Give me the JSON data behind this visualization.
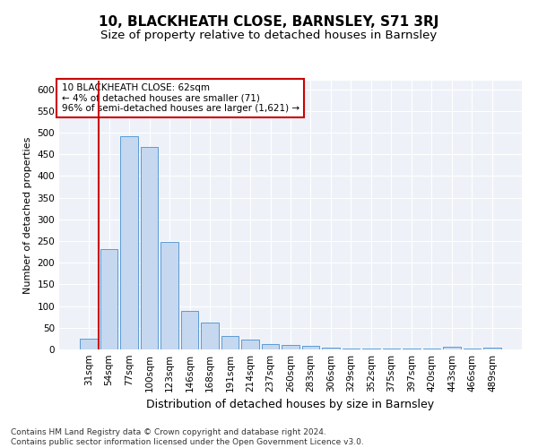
{
  "title1": "10, BLACKHEATH CLOSE, BARNSLEY, S71 3RJ",
  "title2": "Size of property relative to detached houses in Barnsley",
  "xlabel": "Distribution of detached houses by size in Barnsley",
  "ylabel": "Number of detached properties",
  "footnote": "Contains HM Land Registry data © Crown copyright and database right 2024.\nContains public sector information licensed under the Open Government Licence v3.0.",
  "categories": [
    "31sqm",
    "54sqm",
    "77sqm",
    "100sqm",
    "123sqm",
    "146sqm",
    "168sqm",
    "191sqm",
    "214sqm",
    "237sqm",
    "260sqm",
    "283sqm",
    "306sqm",
    "329sqm",
    "352sqm",
    "375sqm",
    "397sqm",
    "420sqm",
    "443sqm",
    "466sqm",
    "489sqm"
  ],
  "values": [
    25,
    232,
    492,
    468,
    248,
    88,
    62,
    31,
    22,
    13,
    11,
    9,
    4,
    3,
    2,
    2,
    2,
    2,
    7,
    2,
    4
  ],
  "bar_color": "#c5d8f0",
  "bar_edge_color": "#5b9bd5",
  "annotation_line1": "10 BLACKHEATH CLOSE: 62sqm",
  "annotation_line2": "← 4% of detached houses are smaller (71)",
  "annotation_line3": "96% of semi-detached houses are larger (1,621) →",
  "annotation_box_facecolor": "#ffffff",
  "annotation_box_edgecolor": "#cc0000",
  "vline_color": "#cc0000",
  "vline_x": 0.5,
  "ylim": [
    0,
    620
  ],
  "yticks": [
    0,
    50,
    100,
    150,
    200,
    250,
    300,
    350,
    400,
    450,
    500,
    550,
    600
  ],
  "background_color": "#eef2f8",
  "grid_color": "#ffffff",
  "title1_fontsize": 11,
  "title2_fontsize": 9.5,
  "xlabel_fontsize": 9,
  "ylabel_fontsize": 8,
  "tick_fontsize": 7.5,
  "annotation_fontsize": 7.5,
  "footnote_fontsize": 6.5
}
